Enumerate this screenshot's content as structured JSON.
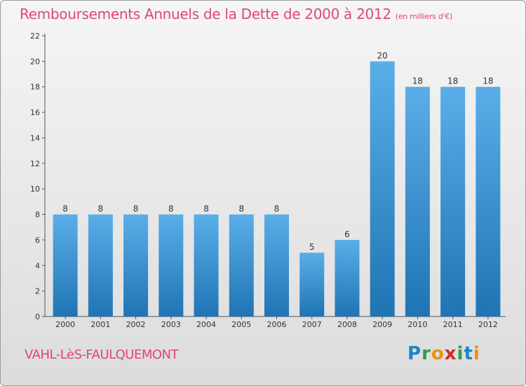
{
  "header": {
    "title": "Remboursements Annuels de la Dette de 2000 à 2012",
    "unit": "(en milliers d'€)"
  },
  "footer": {
    "place": "VAHL-LèS-FAULQUEMONT",
    "logo": "Proxiti"
  },
  "colors": {
    "title": "#e0457f",
    "bar_top": "#5aaee8",
    "bar_bottom": "#1f74b4"
  },
  "chart_data": {
    "type": "bar",
    "title": "Remboursements Annuels de la Dette de 2000 à 2012",
    "xlabel": "",
    "ylabel": "",
    "categories": [
      "2000",
      "2001",
      "2002",
      "2003",
      "2004",
      "2005",
      "2006",
      "2007",
      "2008",
      "2009",
      "2010",
      "2011",
      "2012"
    ],
    "values": [
      8,
      8,
      8,
      8,
      8,
      8,
      8,
      5,
      6,
      20,
      18,
      18,
      18
    ],
    "ylim": [
      0,
      22
    ],
    "yticks": [
      0,
      2,
      4,
      6,
      8,
      10,
      12,
      14,
      16,
      18,
      20,
      22
    ],
    "grid": false,
    "legend": "none"
  }
}
